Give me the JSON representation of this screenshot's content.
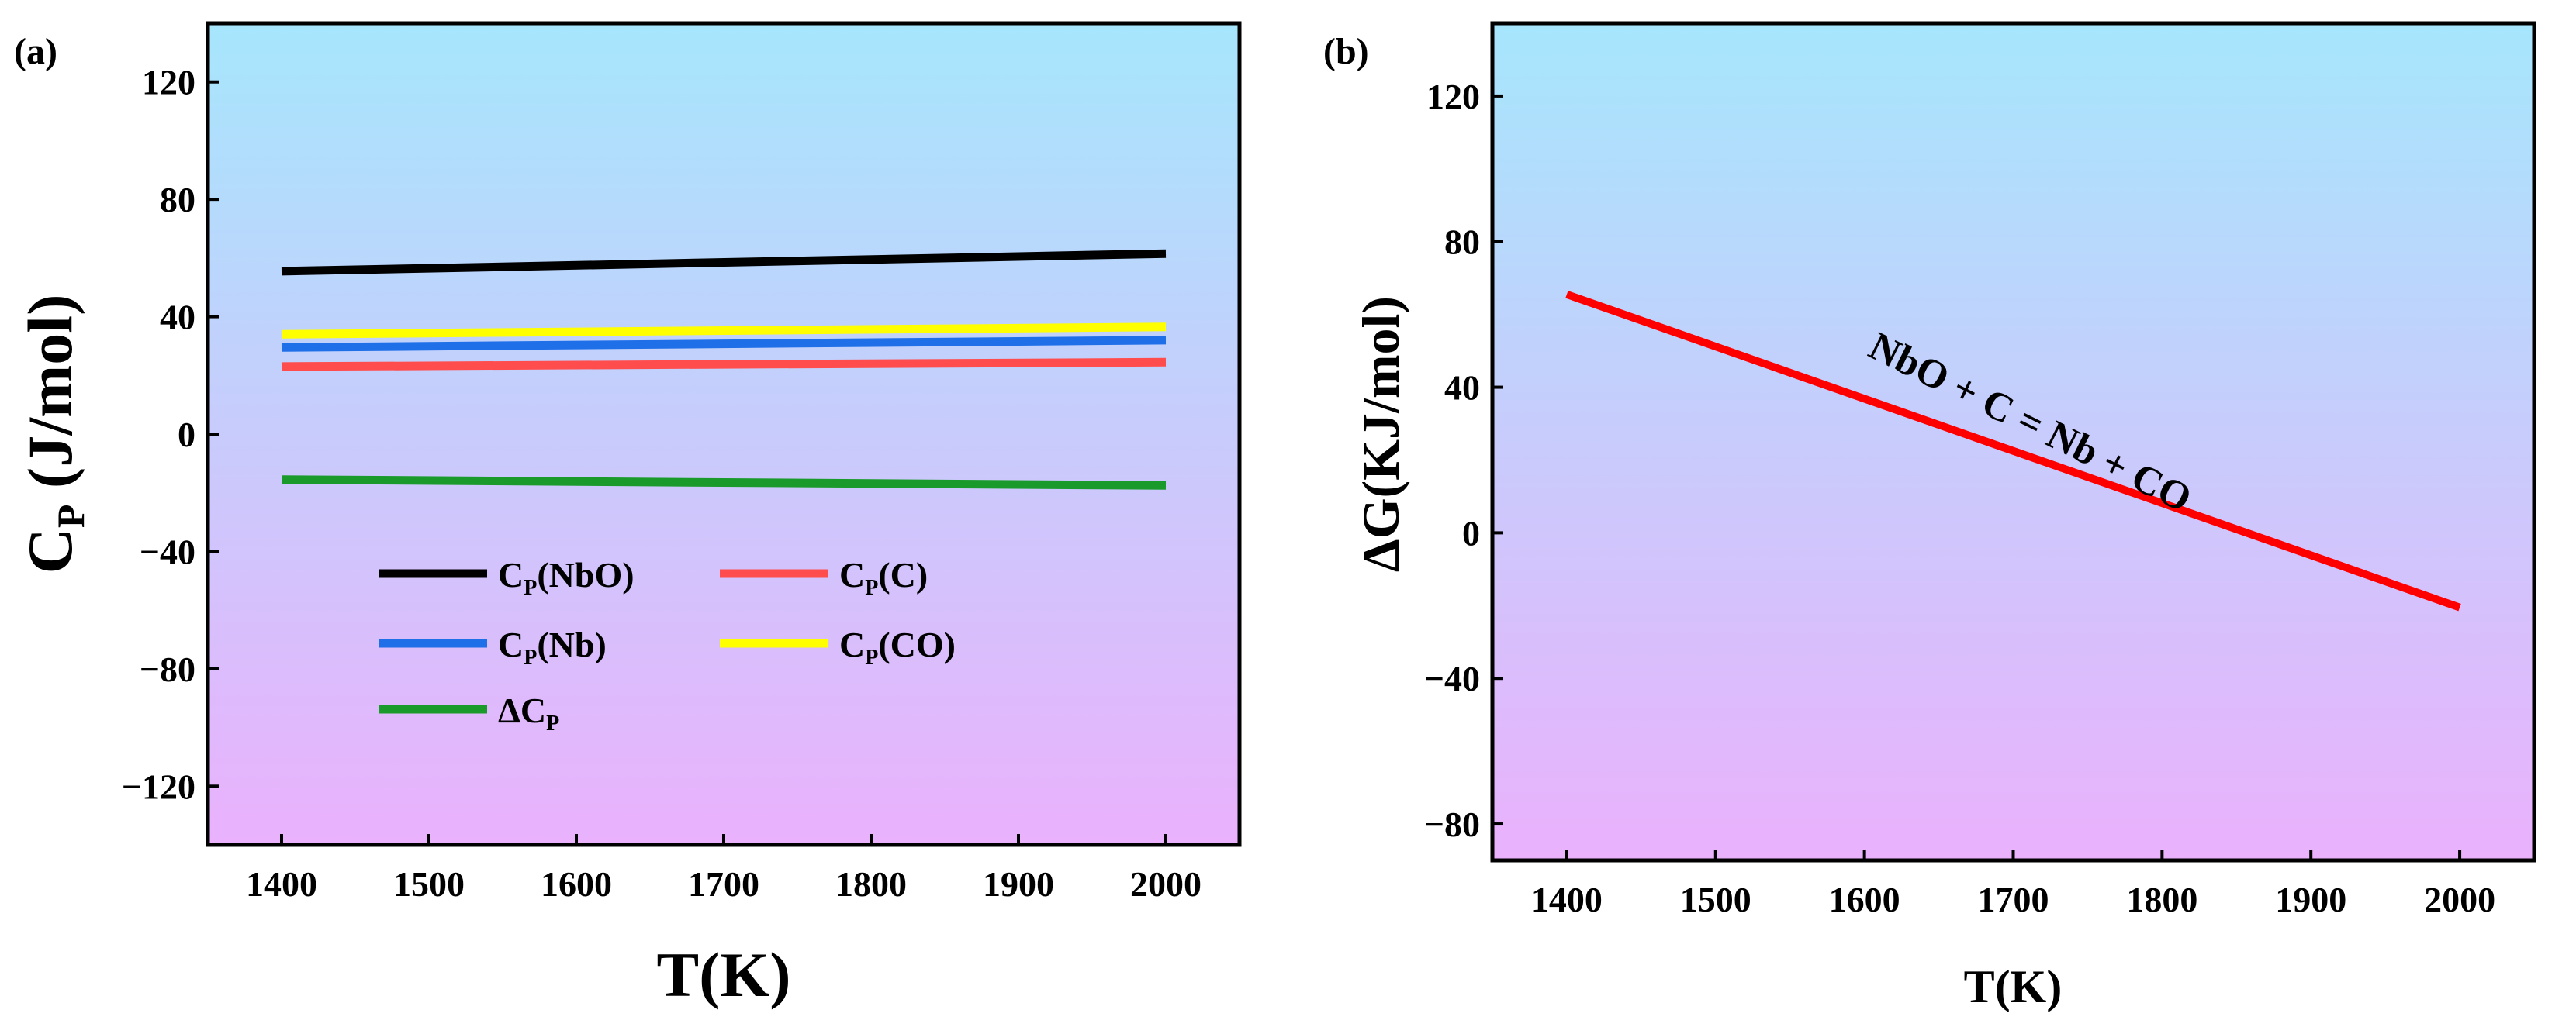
{
  "colors": {
    "gradient_top": "#a6e6fc",
    "gradient_bottom": "#eab1fc",
    "axis": "#000000"
  },
  "chart_data": [
    {
      "panel_label": "(a)",
      "type": "line",
      "xlabel": "T(K)",
      "ylabel_main": "C",
      "ylabel_sub": "P",
      "ylabel_rest": " (J/mol)",
      "xlim": [
        1350,
        2050
      ],
      "ylim": [
        -140,
        140
      ],
      "xticks": [
        1400,
        1500,
        1600,
        1700,
        1800,
        1900,
        2000
      ],
      "yticks": [
        -120,
        -80,
        -40,
        0,
        40,
        80,
        120
      ],
      "ytick_labels": [
        "−120",
        "−80",
        "−40",
        "0",
        "40",
        "80",
        "120"
      ],
      "series": [
        {
          "name": "Cp(NbO)",
          "legend_main": "C",
          "legend_sub": "P",
          "legend_rest": "(NbO)",
          "color": "#000000",
          "x": [
            1400,
            2000
          ],
          "y": [
            55.5,
            61.5
          ]
        },
        {
          "name": "Cp(C)",
          "legend_main": "C",
          "legend_sub": "P",
          "legend_rest": "(C)",
          "color": "#ff4d4d",
          "x": [
            1400,
            2000
          ],
          "y": [
            23.0,
            24.5
          ]
        },
        {
          "name": "Cp(Nb)",
          "legend_main": "C",
          "legend_sub": "P",
          "legend_rest": "(Nb)",
          "color": "#1f6fe8",
          "x": [
            1400,
            2000
          ],
          "y": [
            29.5,
            32.0
          ]
        },
        {
          "name": "Cp(CO)",
          "legend_main": "C",
          "legend_sub": "P",
          "legend_rest": "(CO)",
          "color": "#ffff00",
          "x": [
            1400,
            2000
          ],
          "y": [
            34.0,
            36.5
          ]
        },
        {
          "name": "ΔCp",
          "legend_main": "ΔC",
          "legend_sub": "P",
          "legend_rest": "",
          "color": "#1a9a2a",
          "x": [
            1400,
            2000
          ],
          "y": [
            -15.5,
            -17.5
          ]
        }
      ],
      "legend": "lower-left"
    },
    {
      "panel_label": "(b)",
      "type": "line",
      "xlabel": "T(K)",
      "ylabel": "ΔG(KJ/mol)",
      "xlim": [
        1350,
        2050
      ],
      "ylim": [
        -90,
        140
      ],
      "xticks": [
        1400,
        1500,
        1600,
        1700,
        1800,
        1900,
        2000
      ],
      "yticks": [
        -80,
        -40,
        0,
        40,
        80,
        120
      ],
      "ytick_labels": [
        "−80",
        "−40",
        "0",
        "40",
        "80",
        "120"
      ],
      "series": [
        {
          "name": "ΔG",
          "color": "#ff0000",
          "x": [
            1400,
            2000
          ],
          "y": [
            65.5,
            -20.5
          ]
        }
      ],
      "annotation": "NbO + C = Nb + CO"
    }
  ]
}
